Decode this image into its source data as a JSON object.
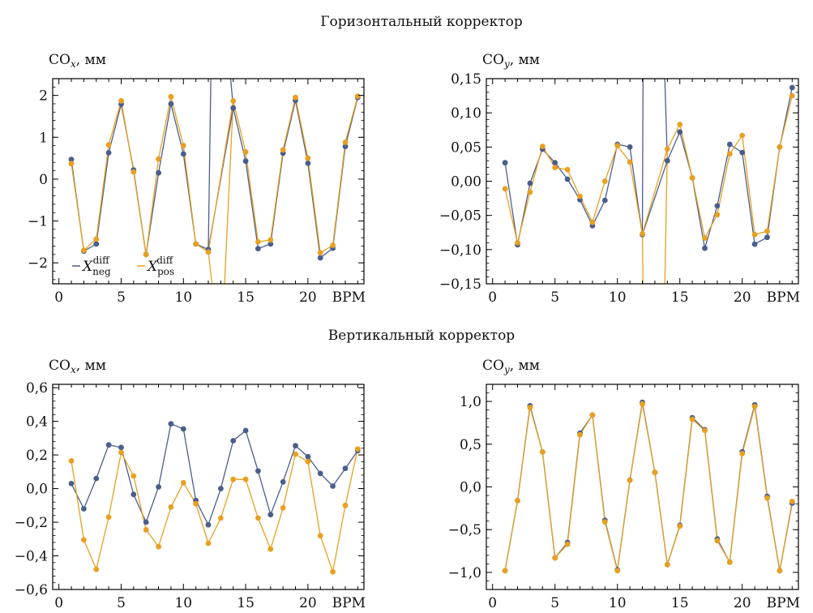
{
  "sections": [
    {
      "title": "Горизонтальный корректор"
    },
    {
      "title": "Вертикальный корректор"
    }
  ],
  "colors": {
    "neg": "#4a5e8c",
    "pos": "#e8a020"
  },
  "legend": [
    {
      "key": "neg",
      "label": "X_neg^diff"
    },
    {
      "key": "pos",
      "label": "X_pos^diff"
    }
  ],
  "chart_data": [
    {
      "type": "line",
      "ylabel": "COx, мм",
      "xlabel": "BPM",
      "xlim": [
        -0.5,
        24.5
      ],
      "ylim": [
        -2.5,
        2.4
      ],
      "xticks": [
        0,
        5,
        10,
        15,
        20
      ],
      "yticks": [
        2,
        1,
        0,
        -1,
        -2
      ],
      "yticklabels": [
        "2",
        "1",
        "0",
        "−1",
        "−2"
      ],
      "x": [
        1,
        2,
        3,
        4,
        5,
        6,
        7,
        8,
        9,
        10,
        11,
        12,
        14,
        15,
        16,
        17,
        18,
        19,
        20,
        21,
        22,
        23,
        24
      ],
      "series": [
        {
          "key": "neg",
          "values": [
            0.47,
            -1.72,
            -1.55,
            0.63,
            1.79,
            0.22,
            -1.8,
            0.15,
            1.8,
            0.6,
            -1.55,
            -1.68,
            1.7,
            0.43,
            -1.66,
            -1.55,
            0.62,
            1.88,
            0.38,
            -1.88,
            -1.65,
            0.78,
            1.95
          ]
        },
        {
          "key": "pos",
          "values": [
            0.37,
            -1.7,
            -1.43,
            0.82,
            1.87,
            0.17,
            -1.8,
            0.48,
            1.97,
            0.8,
            -1.55,
            -1.74,
            1.87,
            0.65,
            -1.5,
            -1.45,
            0.7,
            1.95,
            0.5,
            -1.76,
            -1.58,
            0.88,
            1.98
          ]
        }
      ],
      "spikes": [
        {
          "key": "neg",
          "x": [
            12,
            12.2,
            13.8,
            14
          ],
          "values": [
            -1.68,
            2.4,
            2.4,
            1.7
          ]
        },
        {
          "key": "pos",
          "x": [
            12,
            12.3,
            13.3,
            14
          ],
          "values": [
            -1.74,
            -2.5,
            -2.5,
            1.87
          ]
        }
      ],
      "legend_loc": "lower-left"
    },
    {
      "type": "line",
      "ylabel": "COy, мм",
      "xlabel": "BPM",
      "xlim": [
        -0.5,
        24.5
      ],
      "ylim": [
        -0.15,
        0.15
      ],
      "xticks": [
        0,
        5,
        10,
        15,
        20
      ],
      "yticks": [
        0.15,
        0.1,
        0.05,
        0,
        -0.05,
        -0.1,
        -0.15
      ],
      "yticklabels": [
        "0,15",
        "0,10",
        "0,05",
        "0,00",
        "−0,05",
        "−0,10",
        "−0,15"
      ],
      "x": [
        1,
        2,
        3,
        4,
        5,
        6,
        7,
        8,
        9,
        10,
        11,
        12,
        14,
        15,
        16,
        17,
        18,
        19,
        20,
        21,
        22,
        23,
        24
      ],
      "series": [
        {
          "key": "neg",
          "values": [
            0.027,
            -0.093,
            -0.003,
            0.047,
            0.027,
            0.003,
            -0.027,
            -0.065,
            -0.028,
            0.054,
            0.05,
            -0.078,
            0.03,
            0.072,
            0.005,
            -0.098,
            -0.036,
            0.054,
            0.042,
            -0.092,
            -0.082,
            0.05,
            0.137
          ]
        },
        {
          "key": "pos",
          "values": [
            -0.011,
            -0.09,
            -0.016,
            0.051,
            0.02,
            0.017,
            -0.022,
            -0.06,
            0.0,
            0.052,
            0.028,
            -0.077,
            0.047,
            0.083,
            0.005,
            -0.083,
            -0.049,
            0.04,
            0.067,
            -0.078,
            -0.073,
            0.05,
            0.125
          ]
        }
      ],
      "spikes": [
        {
          "key": "neg",
          "x": [
            12,
            12.05,
            13.8,
            14
          ],
          "values": [
            -0.078,
            0.15,
            0.15,
            0.03
          ]
        },
        {
          "key": "pos",
          "x": [
            12,
            12.05,
            13.8,
            14
          ],
          "values": [
            -0.077,
            -0.15,
            -0.15,
            0.047
          ]
        }
      ],
      "legend_loc": "none"
    },
    {
      "type": "line",
      "ylabel": "COx, мм",
      "xlabel": "BPM",
      "xlim": [
        -0.5,
        24.5
      ],
      "ylim": [
        -0.6,
        0.62
      ],
      "xticks": [
        0,
        5,
        10,
        15,
        20
      ],
      "yticks": [
        0.6,
        0.4,
        0.2,
        0,
        -0.2,
        -0.4,
        -0.6
      ],
      "yticklabels": [
        "0,6",
        "0,4",
        "0,2",
        "0,0",
        "−0,2",
        "−0,4",
        "−0,6"
      ],
      "x": [
        1,
        2,
        3,
        4,
        5,
        6,
        7,
        8,
        9,
        10,
        11,
        12,
        13,
        14,
        15,
        16,
        17,
        18,
        19,
        20,
        21,
        22,
        23,
        24
      ],
      "series": [
        {
          "key": "neg",
          "values": [
            0.03,
            -0.12,
            0.06,
            0.26,
            0.245,
            -0.035,
            -0.2,
            0.01,
            0.385,
            0.355,
            -0.07,
            -0.215,
            0.0,
            0.285,
            0.345,
            0.105,
            -0.155,
            0.04,
            0.255,
            0.19,
            0.09,
            0.015,
            0.12,
            0.225
          ]
        },
        {
          "key": "pos",
          "values": [
            0.165,
            -0.305,
            -0.48,
            -0.17,
            0.215,
            0.075,
            -0.245,
            -0.345,
            -0.11,
            0.035,
            -0.09,
            -0.325,
            -0.175,
            0.055,
            0.055,
            -0.175,
            -0.36,
            -0.115,
            0.205,
            0.16,
            -0.28,
            -0.495,
            -0.1,
            0.235
          ]
        }
      ],
      "spikes": [],
      "legend_loc": "none"
    },
    {
      "type": "line",
      "ylabel": "COy, мм",
      "xlabel": "BPM",
      "xlim": [
        -0.5,
        24.5
      ],
      "ylim": [
        -1.2,
        1.2
      ],
      "xticks": [
        0,
        5,
        10,
        15,
        20
      ],
      "yticks": [
        1.0,
        0.5,
        0.0,
        -0.5,
        -1.0
      ],
      "yticklabels": [
        "1,0",
        "0,5",
        "0,0",
        "−0,5",
        "−1,0"
      ],
      "x": [
        1,
        2,
        3,
        4,
        5,
        6,
        7,
        8,
        9,
        10,
        11,
        12,
        13,
        14,
        15,
        16,
        17,
        18,
        19,
        20,
        21,
        22,
        23,
        24
      ],
      "series": [
        {
          "key": "neg",
          "values": [
            -0.98,
            -0.16,
            0.95,
            0.41,
            -0.83,
            -0.65,
            0.63,
            0.84,
            -0.39,
            -0.97,
            0.08,
            0.99,
            0.17,
            -0.91,
            -0.45,
            0.81,
            0.67,
            -0.61,
            -0.88,
            0.41,
            0.96,
            -0.11,
            -0.98,
            -0.19
          ]
        },
        {
          "key": "pos",
          "values": [
            -0.98,
            -0.16,
            0.93,
            0.41,
            -0.83,
            -0.67,
            0.61,
            0.84,
            -0.41,
            -0.98,
            0.08,
            0.97,
            0.17,
            -0.91,
            -0.46,
            0.79,
            0.66,
            -0.63,
            -0.88,
            0.39,
            0.94,
            -0.13,
            -0.98,
            -0.17
          ]
        }
      ],
      "spikes": [],
      "legend_loc": "none"
    }
  ]
}
